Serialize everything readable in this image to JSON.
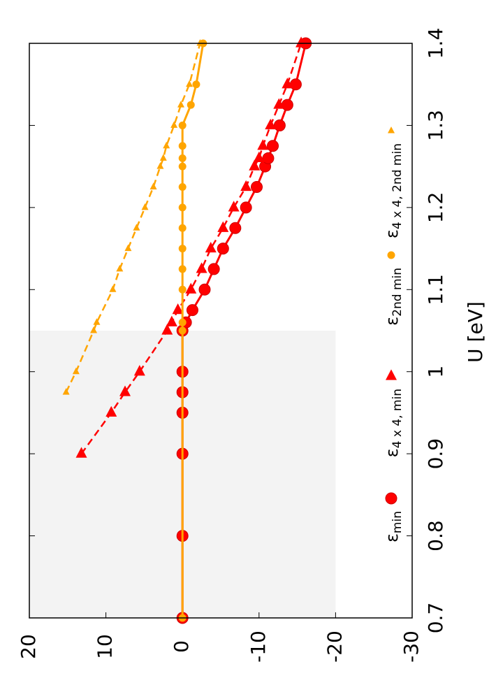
{
  "chart_data": {
    "type": "line",
    "x_label": "U [eV]",
    "xlim": [
      0.7,
      1.4
    ],
    "xticks": [
      0.7,
      0.8,
      0.9,
      1,
      1.1,
      1.2,
      1.3,
      1.4
    ],
    "ylim": [
      20,
      -30
    ],
    "yticks": [
      20,
      10,
      0,
      -10,
      -20,
      -30
    ],
    "rotated": true,
    "shaded_region": {
      "x": [
        0.7,
        1.05
      ],
      "y": [
        -20,
        20
      ],
      "color": "#f3f3f3"
    },
    "series": [
      {
        "name": "εmin",
        "color": "#ff0000",
        "marker": "circle",
        "size": 8,
        "dashed": false,
        "x": [
          0.7,
          0.8,
          0.9,
          0.95,
          0.975,
          1.0,
          1.05,
          1.06,
          1.075,
          1.1,
          1.125,
          1.15,
          1.175,
          1.2,
          1.225,
          1.25,
          1.26,
          1.275,
          1.3,
          1.325,
          1.35,
          1.4
        ],
        "values": [
          0,
          0,
          0,
          0,
          0,
          0,
          0,
          -0.45,
          -1.3,
          -2.9,
          -4.1,
          -5.3,
          -6.9,
          -8.3,
          -9.7,
          -10.8,
          -11.2,
          -11.8,
          -12.7,
          -13.7,
          -14.8,
          -16.1
        ]
      },
      {
        "name": "ε4 x 4, min",
        "color": "#ff0000",
        "marker": "triangle",
        "size": 8,
        "dashed": true,
        "x": [
          0.9,
          0.95,
          0.975,
          1.0,
          1.05,
          1.06,
          1.075,
          1.1,
          1.125,
          1.15,
          1.175,
          1.2,
          1.225,
          1.25,
          1.26,
          1.275,
          1.3,
          1.325,
          1.35,
          1.4
        ],
        "values": [
          13.2,
          9.3,
          7.5,
          5.6,
          2,
          1.4,
          0.6,
          -1.1,
          -2.5,
          -3.7,
          -5.3,
          -6.7,
          -8.3,
          -9.4,
          -10,
          -10.5,
          -11.5,
          -12.6,
          -13.7,
          -15.5
        ]
      },
      {
        "name": "ε2nd min",
        "color": "#ffa500",
        "marker": "circle",
        "size": 5,
        "dashed": false,
        "x": [
          0.7,
          1.05,
          1.06,
          1.1,
          1.125,
          1.15,
          1.175,
          1.2,
          1.225,
          1.25,
          1.26,
          1.275,
          1.3,
          1.325,
          1.35,
          1.4
        ],
        "values": [
          0,
          0,
          0,
          0,
          0,
          0,
          0,
          0,
          0,
          0,
          0,
          0,
          0,
          -1.1,
          -1.8,
          -2.7
        ]
      },
      {
        "name": "ε4 x 4, 2nd min",
        "color": "#ffa500",
        "marker": "triangle",
        "size": 5,
        "dashed": true,
        "x": [
          0.975,
          1.0,
          1.05,
          1.06,
          1.1,
          1.125,
          1.15,
          1.175,
          1.2,
          1.225,
          1.25,
          1.26,
          1.275,
          1.3,
          1.325,
          1.35,
          1.4
        ],
        "values": [
          15.2,
          13.9,
          11.6,
          11.2,
          9.1,
          8.2,
          7.1,
          6,
          4.9,
          3.8,
          2.9,
          2.5,
          2.1,
          1.1,
          0.2,
          -0.9,
          -2.3
        ]
      }
    ]
  }
}
